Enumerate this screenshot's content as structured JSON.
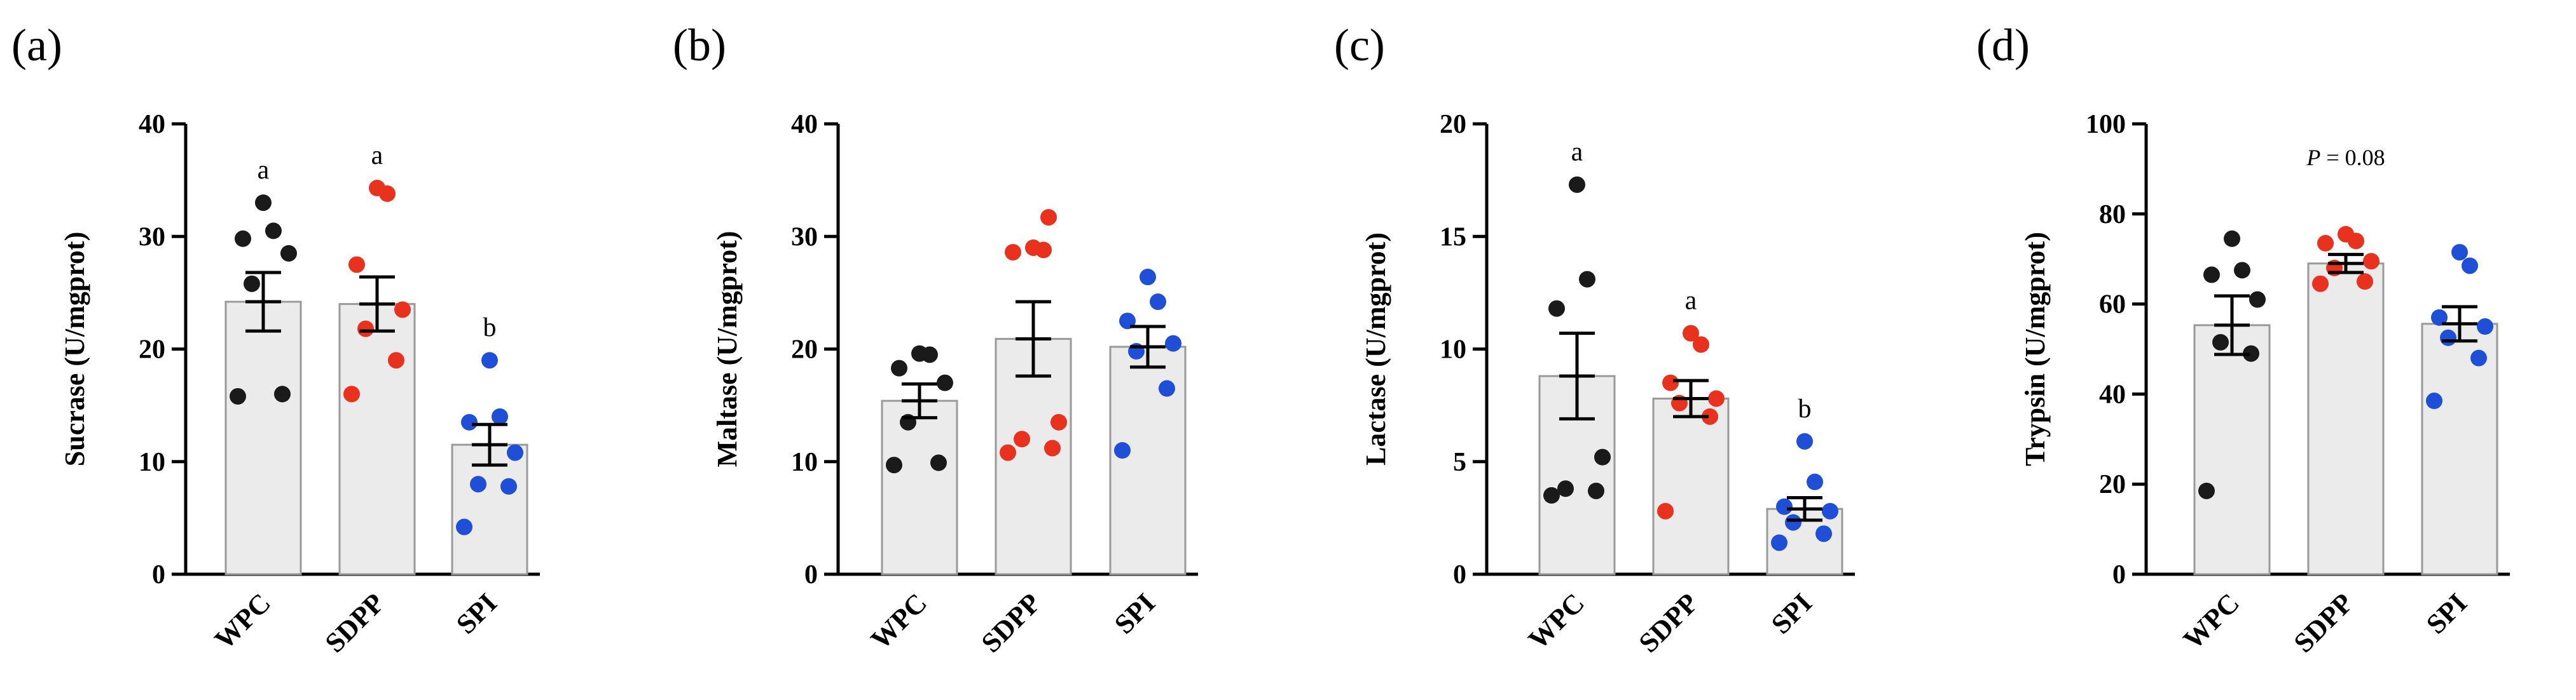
{
  "figure": {
    "categories": [
      "WPC",
      "SDPP",
      "SPI"
    ],
    "colors": {
      "WPC": "#1a1a1a",
      "SDPP": "#e8321e",
      "SPI": "#1f4fd6",
      "bar_fill": "#ebebeb",
      "bar_edge": "#9a9a9a"
    }
  },
  "chart_data": [
    {
      "panel": "(a)",
      "type": "bar",
      "ylabel": "Sucrase (U/mgprot)",
      "ylim": [
        0,
        40
      ],
      "yticks": [
        "0",
        "10",
        "20",
        "30",
        "40"
      ],
      "categories": [
        "WPC",
        "SDPP",
        "SPI"
      ],
      "values": [
        24.2,
        24.0,
        11.5
      ],
      "sem": [
        2.6,
        2.4,
        1.8
      ],
      "points": [
        [
          15.8,
          16.0,
          25.8,
          28.5,
          29.8,
          30.5,
          33.0
        ],
        [
          16.0,
          19.0,
          21.8,
          23.5,
          27.5,
          33.8,
          34.3
        ],
        [
          4.2,
          7.8,
          8.0,
          10.8,
          13.5,
          14.0,
          19.0
        ]
      ],
      "annotations": [
        "a",
        "a",
        "b"
      ]
    },
    {
      "panel": "(b)",
      "type": "bar",
      "ylabel": "Maltase (U/mgprot)",
      "ylim": [
        0,
        40
      ],
      "yticks": [
        "0",
        "10",
        "20",
        "30",
        "40"
      ],
      "categories": [
        "WPC",
        "SDPP",
        "SPI"
      ],
      "values": [
        15.4,
        20.9,
        20.2
      ],
      "sem": [
        1.5,
        3.3,
        1.8
      ],
      "points": [
        [
          9.7,
          9.9,
          13.5,
          17.0,
          18.3,
          19.5,
          19.6
        ],
        [
          10.8,
          11.2,
          12.0,
          13.5,
          28.6,
          28.8,
          29.0,
          31.7
        ],
        [
          11.0,
          16.5,
          19.8,
          20.5,
          22.5,
          24.2,
          26.4
        ]
      ],
      "annotations": [
        "",
        "",
        ""
      ]
    },
    {
      "panel": "(c)",
      "type": "bar",
      "ylabel": "Lactase (U/mgprot)",
      "ylim": [
        0,
        20
      ],
      "yticks": [
        "0",
        "5",
        "10",
        "15",
        "20"
      ],
      "categories": [
        "WPC",
        "SDPP",
        "SPI"
      ],
      "values": [
        8.8,
        7.8,
        2.9
      ],
      "sem": [
        1.9,
        0.8,
        0.5
      ],
      "points": [
        [
          3.5,
          3.7,
          3.8,
          5.2,
          11.8,
          13.1,
          17.3
        ],
        [
          2.8,
          7.0,
          7.6,
          7.8,
          8.5,
          10.2,
          10.7
        ],
        [
          1.4,
          1.8,
          2.3,
          2.8,
          3.0,
          4.1,
          5.9
        ]
      ],
      "annotations": [
        "a",
        "a",
        "b"
      ]
    },
    {
      "panel": "(d)",
      "type": "bar",
      "ylabel": "Trypsin (U/mgprot)",
      "ylim": [
        0,
        100
      ],
      "yticks": [
        "0",
        "20",
        "40",
        "60",
        "80",
        "100"
      ],
      "categories": [
        "WPC",
        "SDPP",
        "SPI"
      ],
      "values": [
        55.3,
        69.0,
        55.6
      ],
      "sem": [
        6.5,
        2.0,
        3.8
      ],
      "points": [
        [
          18.5,
          49.0,
          51.5,
          61.0,
          66.5,
          67.5,
          74.5
        ],
        [
          64.5,
          65.0,
          68.0,
          69.5,
          73.5,
          74.0,
          75.5
        ],
        [
          38.5,
          48.0,
          52.5,
          55.0,
          57.0,
          68.5,
          71.5
        ]
      ],
      "annotations": [
        "",
        "",
        ""
      ],
      "p_label": {
        "p": "P",
        "text": " = 0.08"
      }
    }
  ]
}
